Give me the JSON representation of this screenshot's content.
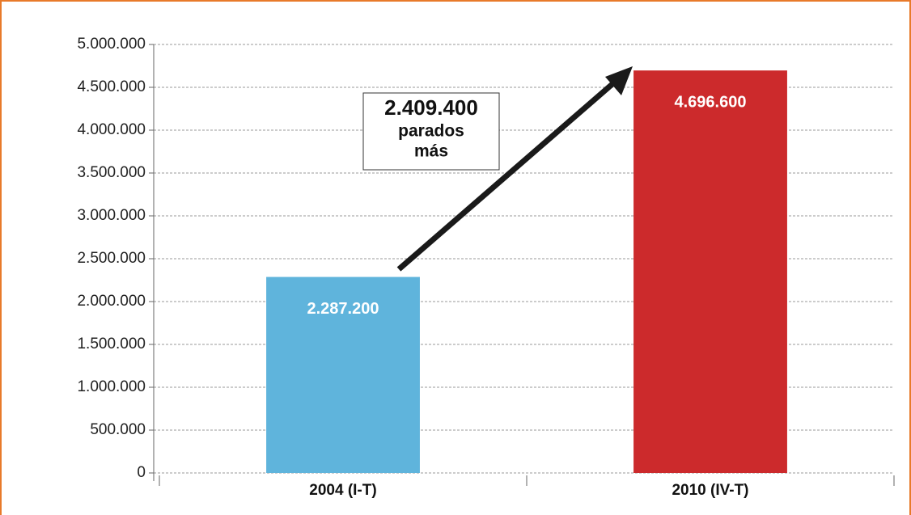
{
  "chart_data": {
    "type": "bar",
    "categories": [
      "2004 (I-T)",
      "2010 (IV-T)"
    ],
    "values": [
      2287200,
      4696600
    ],
    "value_labels": [
      "2.287.200",
      "4.696.600"
    ],
    "colors": [
      "#5fb4dc",
      "#cc2a2c"
    ],
    "ylim": [
      0,
      5000000
    ],
    "yticks": [
      0,
      {
        "value": 500000,
        "label": "500.000"
      },
      {
        "value": 1000000,
        "label": "1.000.000"
      },
      {
        "value": 1500000,
        "label": "1.500.000"
      },
      {
        "value": 2000000,
        "label": "2.000.000"
      },
      {
        "value": 2500000,
        "label": "2.500.000"
      },
      {
        "value": 3000000,
        "label": "3.000.000"
      },
      {
        "value": 3500000,
        "label": "3.500.000"
      },
      {
        "value": 4000000,
        "label": "4.000.000"
      },
      {
        "value": 4500000,
        "label": "4.500.000"
      },
      {
        "value": 5000000,
        "label": "5.000.000"
      }
    ],
    "grid": true,
    "annotation": [
      "2.409.400",
      "parados",
      "más"
    ]
  }
}
